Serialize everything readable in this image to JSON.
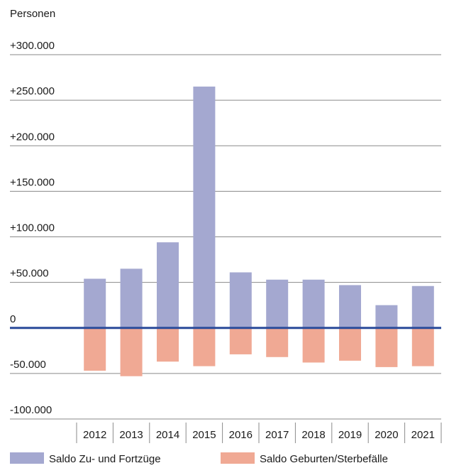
{
  "chart_data": {
    "type": "bar",
    "ylabel": "Personen",
    "categories": [
      "2012",
      "2013",
      "2014",
      "2015",
      "2016",
      "2017",
      "2018",
      "2019",
      "2020",
      "2021"
    ],
    "series": [
      {
        "name": "Saldo Zu- und Fortzüge",
        "color": "#a4a8d0",
        "values": [
          54000,
          65000,
          94000,
          265000,
          61000,
          53000,
          53000,
          47000,
          25000,
          46000
        ]
      },
      {
        "name": "Saldo Geburten/Sterbefälle",
        "color": "#f0a994",
        "values": [
          -47000,
          -53000,
          -37000,
          -42000,
          -29000,
          -32000,
          -38000,
          -36000,
          -43000,
          -42000
        ]
      }
    ],
    "ylim": [
      -100000,
      300000
    ],
    "yticks": [
      300000,
      250000,
      200000,
      150000,
      100000,
      50000,
      0,
      -50000,
      -100000
    ],
    "ytick_labels": [
      "+300.000",
      "+250.000",
      "+200.000",
      "+150.000",
      "+100.000",
      "+50.000",
      "0",
      "-50.000",
      "-100.000"
    ],
    "zero_line_color": "#2a4b9a",
    "grid": true,
    "legend": "bottom"
  }
}
